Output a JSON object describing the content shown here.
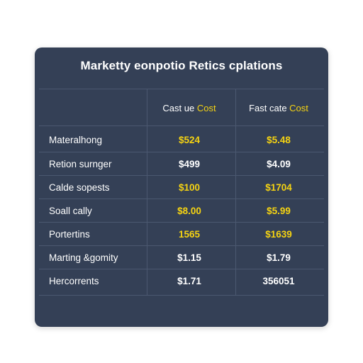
{
  "title": "Marketty eonpotio Retics cplations",
  "colors": {
    "card_bg": "#344056",
    "grid": "#4b5870",
    "highlight": "#f5d312",
    "text": "#ffffff"
  },
  "headers": {
    "col1": {
      "prefix": "Cast ue ",
      "accent": "Cost"
    },
    "col2": {
      "prefix": "Fast cate ",
      "accent": "Cost"
    }
  },
  "rows": [
    {
      "label": "Materalhong",
      "col1": "$524",
      "col2": "$5.48",
      "col1_highlight": true,
      "col2_highlight": true
    },
    {
      "label": "Retion surnger",
      "col1": "$499",
      "col2": "$4.09",
      "col1_highlight": false,
      "col2_highlight": false
    },
    {
      "label": "Calde sopests",
      "col1": "$100",
      "col2": "$1704",
      "col1_highlight": true,
      "col2_highlight": true
    },
    {
      "label": "Soall cally",
      "col1": "$8.00",
      "col2": "$5.99",
      "col1_highlight": true,
      "col2_highlight": true
    },
    {
      "label": "Portertins",
      "col1": "1565",
      "col2": "$1639",
      "col1_highlight": true,
      "col2_highlight": true
    },
    {
      "label": "Marting &gomity",
      "col1": "$1.15",
      "col2": "$1.79",
      "col1_highlight": false,
      "col2_highlight": false
    },
    {
      "label": "Hercorrents",
      "col1": "$1.71",
      "col2": "356051",
      "col1_highlight": false,
      "col2_highlight": false
    }
  ]
}
